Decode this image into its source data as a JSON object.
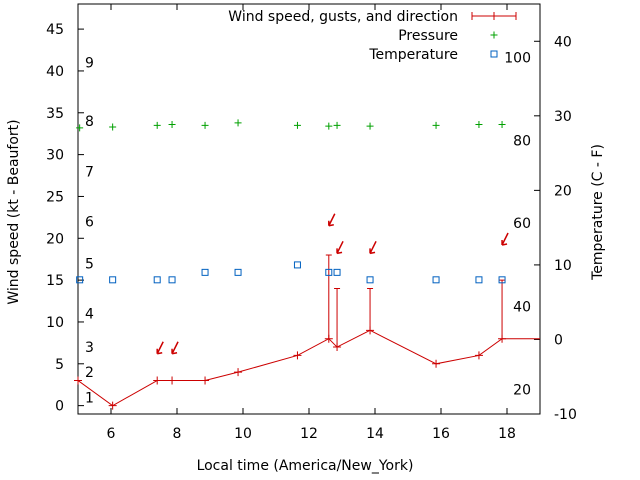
{
  "chart_data": {
    "type": "line",
    "xlabel": "Local time (America/New_York)",
    "ylabel": "Wind speed (kt - Beaufort)",
    "y2label": "Temperature (C - F)",
    "xlim": [
      5,
      19
    ],
    "ylim": [
      -1,
      48
    ],
    "y2lim": [
      -10,
      45
    ],
    "x_ticks": [
      6,
      8,
      10,
      12,
      14,
      16,
      18
    ],
    "y_ticks": [
      0,
      5,
      10,
      15,
      20,
      25,
      30,
      35,
      40,
      45
    ],
    "y2_ticks": [
      -10,
      0,
      10,
      20,
      30,
      40
    ],
    "fahrenheit_labels": [
      {
        "label": "20",
        "c": -6.7
      },
      {
        "label": "40",
        "c": 4.4
      },
      {
        "label": "60",
        "c": 15.6
      },
      {
        "label": "80",
        "c": 26.7
      },
      {
        "label": "100",
        "c": 37.8
      }
    ],
    "beaufort_labels": [
      {
        "label": "1",
        "kt": 1
      },
      {
        "label": "2",
        "kt": 4
      },
      {
        "label": "3",
        "kt": 7
      },
      {
        "label": "4",
        "kt": 11
      },
      {
        "label": "5",
        "kt": 17
      },
      {
        "label": "6",
        "kt": 22
      },
      {
        "label": "7",
        "kt": 28
      },
      {
        "label": "8",
        "kt": 34
      },
      {
        "label": "9",
        "kt": 41
      }
    ],
    "grid": false,
    "legend_position": "top-right",
    "series": [
      {
        "name": "Wind speed, gusts, and direction",
        "color": "#cc0000",
        "marker": "plus-errorbar",
        "points": [
          {
            "x": 5.0,
            "y": 3
          },
          {
            "x": 6.05,
            "y": 0
          },
          {
            "x": 7.4,
            "y": 3
          },
          {
            "x": 7.85,
            "y": 3
          },
          {
            "x": 8.85,
            "y": 3
          },
          {
            "x": 9.85,
            "y": 4
          },
          {
            "x": 11.65,
            "y": 6
          },
          {
            "x": 12.6,
            "y": 8,
            "gust": 18
          },
          {
            "x": 12.85,
            "y": 7,
            "gust": 14
          },
          {
            "x": 13.85,
            "y": 9,
            "gust": 14
          },
          {
            "x": 15.85,
            "y": 5
          },
          {
            "x": 17.15,
            "y": 6
          },
          {
            "x": 17.85,
            "y": 8,
            "gust": 15
          },
          {
            "x": 19.0,
            "y": 8
          }
        ],
        "direction_arrows": [
          {
            "x": 7.4,
            "y": 6.2
          },
          {
            "x": 7.85,
            "y": 6.2
          },
          {
            "x": 12.6,
            "y": 21.5
          },
          {
            "x": 12.85,
            "y": 18.2
          },
          {
            "x": 13.85,
            "y": 18.2
          },
          {
            "x": 17.85,
            "y": 19.2
          }
        ]
      },
      {
        "name": "Pressure",
        "color": "#00a000",
        "marker": "plus",
        "points": [
          {
            "x": 5.05,
            "y": 33.2
          },
          {
            "x": 6.05,
            "y": 33.3
          },
          {
            "x": 7.4,
            "y": 33.5
          },
          {
            "x": 7.85,
            "y": 33.6
          },
          {
            "x": 8.85,
            "y": 33.5
          },
          {
            "x": 9.85,
            "y": 33.8
          },
          {
            "x": 11.65,
            "y": 33.5
          },
          {
            "x": 12.6,
            "y": 33.4
          },
          {
            "x": 12.85,
            "y": 33.5
          },
          {
            "x": 13.85,
            "y": 33.4
          },
          {
            "x": 15.85,
            "y": 33.5
          },
          {
            "x": 17.15,
            "y": 33.6
          },
          {
            "x": 17.85,
            "y": 33.6
          }
        ]
      },
      {
        "name": "Temperature",
        "color": "#0060c0",
        "marker": "square",
        "points": [
          {
            "x": 5.05,
            "y": 8
          },
          {
            "x": 6.05,
            "y": 8
          },
          {
            "x": 7.4,
            "y": 8
          },
          {
            "x": 7.85,
            "y": 8
          },
          {
            "x": 8.85,
            "y": 9
          },
          {
            "x": 9.85,
            "y": 9
          },
          {
            "x": 11.65,
            "y": 10
          },
          {
            "x": 12.6,
            "y": 9
          },
          {
            "x": 12.85,
            "y": 9
          },
          {
            "x": 13.85,
            "y": 8
          },
          {
            "x": 15.85,
            "y": 8
          },
          {
            "x": 17.15,
            "y": 8
          },
          {
            "x": 17.85,
            "y": 8
          }
        ]
      }
    ]
  }
}
